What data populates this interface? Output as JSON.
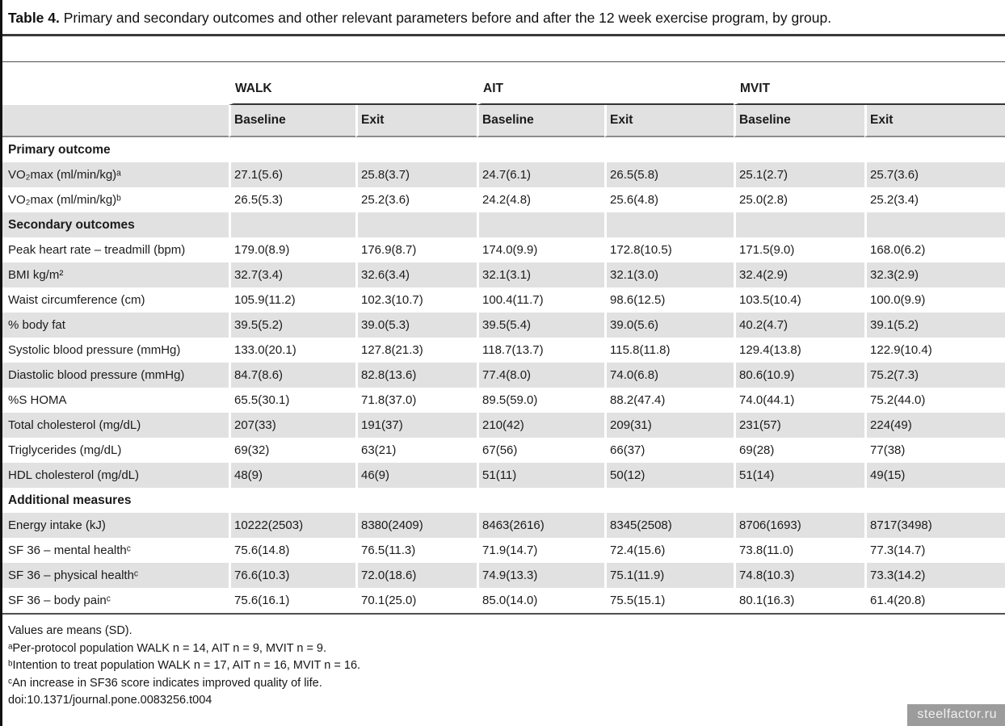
{
  "title": {
    "bold": "Table 4.",
    "rest": " Primary and secondary outcomes and other relevant parameters before and after the 12 week exercise program, by group."
  },
  "table": {
    "groups": [
      "WALK",
      "AIT",
      "MVIT"
    ],
    "subheaders": [
      "Baseline",
      "Exit",
      "Baseline",
      "Exit",
      "Baseline",
      "Exit"
    ],
    "rows": [
      {
        "type": "section",
        "shade": false,
        "label": "Primary outcome",
        "values": [
          "",
          "",
          "",
          "",
          "",
          ""
        ]
      },
      {
        "type": "data",
        "shade": true,
        "label": "VO₂max (ml/min/kg)ᵃ",
        "values": [
          "27.1(5.6)",
          "25.8(3.7)",
          "24.7(6.1)",
          "26.5(5.8)",
          "25.1(2.7)",
          "25.7(3.6)"
        ]
      },
      {
        "type": "data",
        "shade": false,
        "label": "VO₂max (ml/min/kg)ᵇ",
        "values": [
          "26.5(5.3)",
          "25.2(3.6)",
          "24.2(4.8)",
          "25.6(4.8)",
          "25.0(2.8)",
          "25.2(3.4)"
        ]
      },
      {
        "type": "section",
        "shade": true,
        "label": "Secondary outcomes",
        "values": [
          "",
          "",
          "",
          "",
          "",
          ""
        ]
      },
      {
        "type": "data",
        "shade": false,
        "label": "Peak heart rate – treadmill (bpm)",
        "values": [
          "179.0(8.9)",
          "176.9(8.7)",
          "174.0(9.9)",
          "172.8(10.5)",
          "171.5(9.0)",
          "168.0(6.2)"
        ]
      },
      {
        "type": "data",
        "shade": true,
        "label": "BMI kg/m²",
        "values": [
          "32.7(3.4)",
          "32.6(3.4)",
          "32.1(3.1)",
          "32.1(3.0)",
          "32.4(2.9)",
          "32.3(2.9)"
        ]
      },
      {
        "type": "data",
        "shade": false,
        "label": "Waist circumference (cm)",
        "values": [
          "105.9(11.2)",
          "102.3(10.7)",
          "100.4(11.7)",
          "98.6(12.5)",
          "103.5(10.4)",
          "100.0(9.9)"
        ]
      },
      {
        "type": "data",
        "shade": true,
        "label": "% body fat",
        "values": [
          "39.5(5.2)",
          "39.0(5.3)",
          "39.5(5.4)",
          "39.0(5.6)",
          "40.2(4.7)",
          "39.1(5.2)"
        ]
      },
      {
        "type": "data",
        "shade": false,
        "label": "Systolic blood pressure (mmHg)",
        "values": [
          "133.0(20.1)",
          "127.8(21.3)",
          "118.7(13.7)",
          "115.8(11.8)",
          "129.4(13.8)",
          "122.9(10.4)"
        ]
      },
      {
        "type": "data",
        "shade": true,
        "label": "Diastolic blood pressure (mmHg)",
        "values": [
          "84.7(8.6)",
          "82.8(13.6)",
          "77.4(8.0)",
          "74.0(6.8)",
          "80.6(10.9)",
          "75.2(7.3)"
        ]
      },
      {
        "type": "data",
        "shade": false,
        "label": "%S HOMA",
        "values": [
          "65.5(30.1)",
          "71.8(37.0)",
          "89.5(59.0)",
          "88.2(47.4)",
          "74.0(44.1)",
          "75.2(44.0)"
        ]
      },
      {
        "type": "data",
        "shade": true,
        "label": "Total cholesterol (mg/dL)",
        "values": [
          "207(33)",
          "191(37)",
          "210(42)",
          "209(31)",
          "231(57)",
          "224(49)"
        ]
      },
      {
        "type": "data",
        "shade": false,
        "label": "Triglycerides (mg/dL)",
        "values": [
          "69(32)",
          "63(21)",
          "67(56)",
          "66(37)",
          "69(28)",
          "77(38)"
        ]
      },
      {
        "type": "data",
        "shade": true,
        "label": "HDL cholesterol (mg/dL)",
        "values": [
          "48(9)",
          "46(9)",
          "51(11)",
          "50(12)",
          "51(14)",
          "49(15)"
        ]
      },
      {
        "type": "section",
        "shade": false,
        "label": "Additional measures",
        "values": [
          "",
          "",
          "",
          "",
          "",
          ""
        ]
      },
      {
        "type": "data",
        "shade": true,
        "label": "Energy intake (kJ)",
        "values": [
          "10222(2503)",
          "8380(2409)",
          "8463(2616)",
          "8345(2508)",
          "8706(1693)",
          "8717(3498)"
        ]
      },
      {
        "type": "data",
        "shade": false,
        "label": "SF 36 – mental healthᶜ",
        "values": [
          "75.6(14.8)",
          "76.5(11.3)",
          "71.9(14.7)",
          "72.4(15.6)",
          "73.8(11.0)",
          "77.3(14.7)"
        ]
      },
      {
        "type": "data",
        "shade": true,
        "label": "SF 36 – physical healthᶜ",
        "values": [
          "76.6(10.3)",
          "72.0(18.6)",
          "74.9(13.3)",
          "75.1(11.9)",
          "74.8(10.3)",
          "73.3(14.2)"
        ]
      },
      {
        "type": "data",
        "shade": false,
        "label": "SF 36 – body painᶜ",
        "values": [
          "75.6(16.1)",
          "70.1(25.0)",
          "85.0(14.0)",
          "75.5(15.1)",
          "80.1(16.3)",
          "61.4(20.8)"
        ]
      }
    ]
  },
  "footnotes": [
    "Values are means (SD).",
    "ᵃPer-protocol population WALK n = 14, AIT n = 9, MVIT n = 9.",
    "ᵇIntention to treat population WALK n = 17, AIT n = 16, MVIT n = 16.",
    "ᶜAn increase in SF36 score indicates improved quality of life.",
    "doi:10.1371/journal.pone.0083256.t004"
  ],
  "watermark": "steelfactor.ru",
  "colors": {
    "stripe": "#e1e1e1",
    "badge_bg": "#9c9c9c",
    "badge_text": "#f0f0f0",
    "rule_dark": "#3a3a3a",
    "rule_mid": "#8c8c8c"
  }
}
